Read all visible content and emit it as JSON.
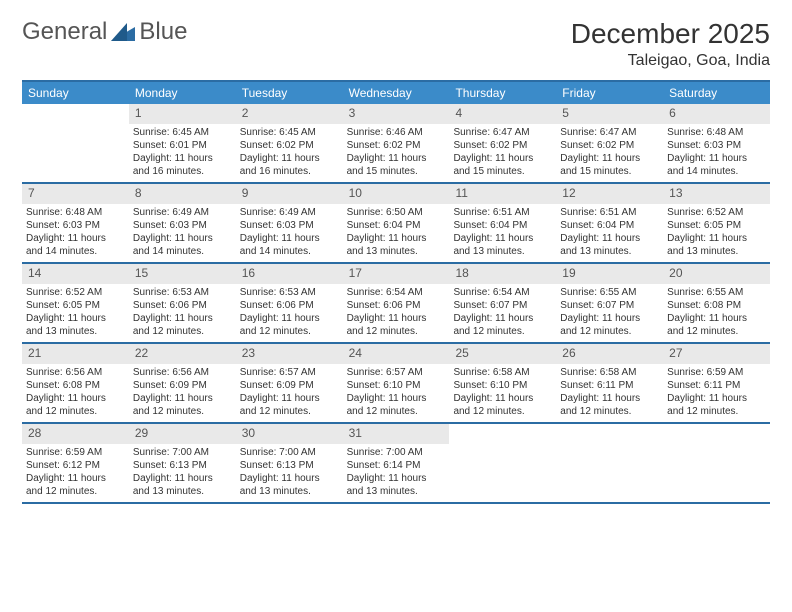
{
  "logo": {
    "word1": "General",
    "word2": "Blue"
  },
  "title": "December 2025",
  "location": "Taleigao, Goa, India",
  "colors": {
    "header_bg": "#3b8bc9",
    "border": "#2b6ca3",
    "daynum_bg": "#e9e9e9",
    "text": "#333333",
    "logo_blue": "#2b6ca3"
  },
  "dows": [
    "Sunday",
    "Monday",
    "Tuesday",
    "Wednesday",
    "Thursday",
    "Friday",
    "Saturday"
  ],
  "weeks": [
    [
      {
        "n": "",
        "lines": [
          "",
          "",
          "",
          ""
        ]
      },
      {
        "n": "1",
        "lines": [
          "Sunrise: 6:45 AM",
          "Sunset: 6:01 PM",
          "Daylight: 11 hours",
          "and 16 minutes."
        ]
      },
      {
        "n": "2",
        "lines": [
          "Sunrise: 6:45 AM",
          "Sunset: 6:02 PM",
          "Daylight: 11 hours",
          "and 16 minutes."
        ]
      },
      {
        "n": "3",
        "lines": [
          "Sunrise: 6:46 AM",
          "Sunset: 6:02 PM",
          "Daylight: 11 hours",
          "and 15 minutes."
        ]
      },
      {
        "n": "4",
        "lines": [
          "Sunrise: 6:47 AM",
          "Sunset: 6:02 PM",
          "Daylight: 11 hours",
          "and 15 minutes."
        ]
      },
      {
        "n": "5",
        "lines": [
          "Sunrise: 6:47 AM",
          "Sunset: 6:02 PM",
          "Daylight: 11 hours",
          "and 15 minutes."
        ]
      },
      {
        "n": "6",
        "lines": [
          "Sunrise: 6:48 AM",
          "Sunset: 6:03 PM",
          "Daylight: 11 hours",
          "and 14 minutes."
        ]
      }
    ],
    [
      {
        "n": "7",
        "lines": [
          "Sunrise: 6:48 AM",
          "Sunset: 6:03 PM",
          "Daylight: 11 hours",
          "and 14 minutes."
        ]
      },
      {
        "n": "8",
        "lines": [
          "Sunrise: 6:49 AM",
          "Sunset: 6:03 PM",
          "Daylight: 11 hours",
          "and 14 minutes."
        ]
      },
      {
        "n": "9",
        "lines": [
          "Sunrise: 6:49 AM",
          "Sunset: 6:03 PM",
          "Daylight: 11 hours",
          "and 14 minutes."
        ]
      },
      {
        "n": "10",
        "lines": [
          "Sunrise: 6:50 AM",
          "Sunset: 6:04 PM",
          "Daylight: 11 hours",
          "and 13 minutes."
        ]
      },
      {
        "n": "11",
        "lines": [
          "Sunrise: 6:51 AM",
          "Sunset: 6:04 PM",
          "Daylight: 11 hours",
          "and 13 minutes."
        ]
      },
      {
        "n": "12",
        "lines": [
          "Sunrise: 6:51 AM",
          "Sunset: 6:04 PM",
          "Daylight: 11 hours",
          "and 13 minutes."
        ]
      },
      {
        "n": "13",
        "lines": [
          "Sunrise: 6:52 AM",
          "Sunset: 6:05 PM",
          "Daylight: 11 hours",
          "and 13 minutes."
        ]
      }
    ],
    [
      {
        "n": "14",
        "lines": [
          "Sunrise: 6:52 AM",
          "Sunset: 6:05 PM",
          "Daylight: 11 hours",
          "and 13 minutes."
        ]
      },
      {
        "n": "15",
        "lines": [
          "Sunrise: 6:53 AM",
          "Sunset: 6:06 PM",
          "Daylight: 11 hours",
          "and 12 minutes."
        ]
      },
      {
        "n": "16",
        "lines": [
          "Sunrise: 6:53 AM",
          "Sunset: 6:06 PM",
          "Daylight: 11 hours",
          "and 12 minutes."
        ]
      },
      {
        "n": "17",
        "lines": [
          "Sunrise: 6:54 AM",
          "Sunset: 6:06 PM",
          "Daylight: 11 hours",
          "and 12 minutes."
        ]
      },
      {
        "n": "18",
        "lines": [
          "Sunrise: 6:54 AM",
          "Sunset: 6:07 PM",
          "Daylight: 11 hours",
          "and 12 minutes."
        ]
      },
      {
        "n": "19",
        "lines": [
          "Sunrise: 6:55 AM",
          "Sunset: 6:07 PM",
          "Daylight: 11 hours",
          "and 12 minutes."
        ]
      },
      {
        "n": "20",
        "lines": [
          "Sunrise: 6:55 AM",
          "Sunset: 6:08 PM",
          "Daylight: 11 hours",
          "and 12 minutes."
        ]
      }
    ],
    [
      {
        "n": "21",
        "lines": [
          "Sunrise: 6:56 AM",
          "Sunset: 6:08 PM",
          "Daylight: 11 hours",
          "and 12 minutes."
        ]
      },
      {
        "n": "22",
        "lines": [
          "Sunrise: 6:56 AM",
          "Sunset: 6:09 PM",
          "Daylight: 11 hours",
          "and 12 minutes."
        ]
      },
      {
        "n": "23",
        "lines": [
          "Sunrise: 6:57 AM",
          "Sunset: 6:09 PM",
          "Daylight: 11 hours",
          "and 12 minutes."
        ]
      },
      {
        "n": "24",
        "lines": [
          "Sunrise: 6:57 AM",
          "Sunset: 6:10 PM",
          "Daylight: 11 hours",
          "and 12 minutes."
        ]
      },
      {
        "n": "25",
        "lines": [
          "Sunrise: 6:58 AM",
          "Sunset: 6:10 PM",
          "Daylight: 11 hours",
          "and 12 minutes."
        ]
      },
      {
        "n": "26",
        "lines": [
          "Sunrise: 6:58 AM",
          "Sunset: 6:11 PM",
          "Daylight: 11 hours",
          "and 12 minutes."
        ]
      },
      {
        "n": "27",
        "lines": [
          "Sunrise: 6:59 AM",
          "Sunset: 6:11 PM",
          "Daylight: 11 hours",
          "and 12 minutes."
        ]
      }
    ],
    [
      {
        "n": "28",
        "lines": [
          "Sunrise: 6:59 AM",
          "Sunset: 6:12 PM",
          "Daylight: 11 hours",
          "and 12 minutes."
        ]
      },
      {
        "n": "29",
        "lines": [
          "Sunrise: 7:00 AM",
          "Sunset: 6:13 PM",
          "Daylight: 11 hours",
          "and 13 minutes."
        ]
      },
      {
        "n": "30",
        "lines": [
          "Sunrise: 7:00 AM",
          "Sunset: 6:13 PM",
          "Daylight: 11 hours",
          "and 13 minutes."
        ]
      },
      {
        "n": "31",
        "lines": [
          "Sunrise: 7:00 AM",
          "Sunset: 6:14 PM",
          "Daylight: 11 hours",
          "and 13 minutes."
        ]
      },
      {
        "n": "",
        "lines": [
          "",
          "",
          "",
          ""
        ]
      },
      {
        "n": "",
        "lines": [
          "",
          "",
          "",
          ""
        ]
      },
      {
        "n": "",
        "lines": [
          "",
          "",
          "",
          ""
        ]
      }
    ]
  ]
}
